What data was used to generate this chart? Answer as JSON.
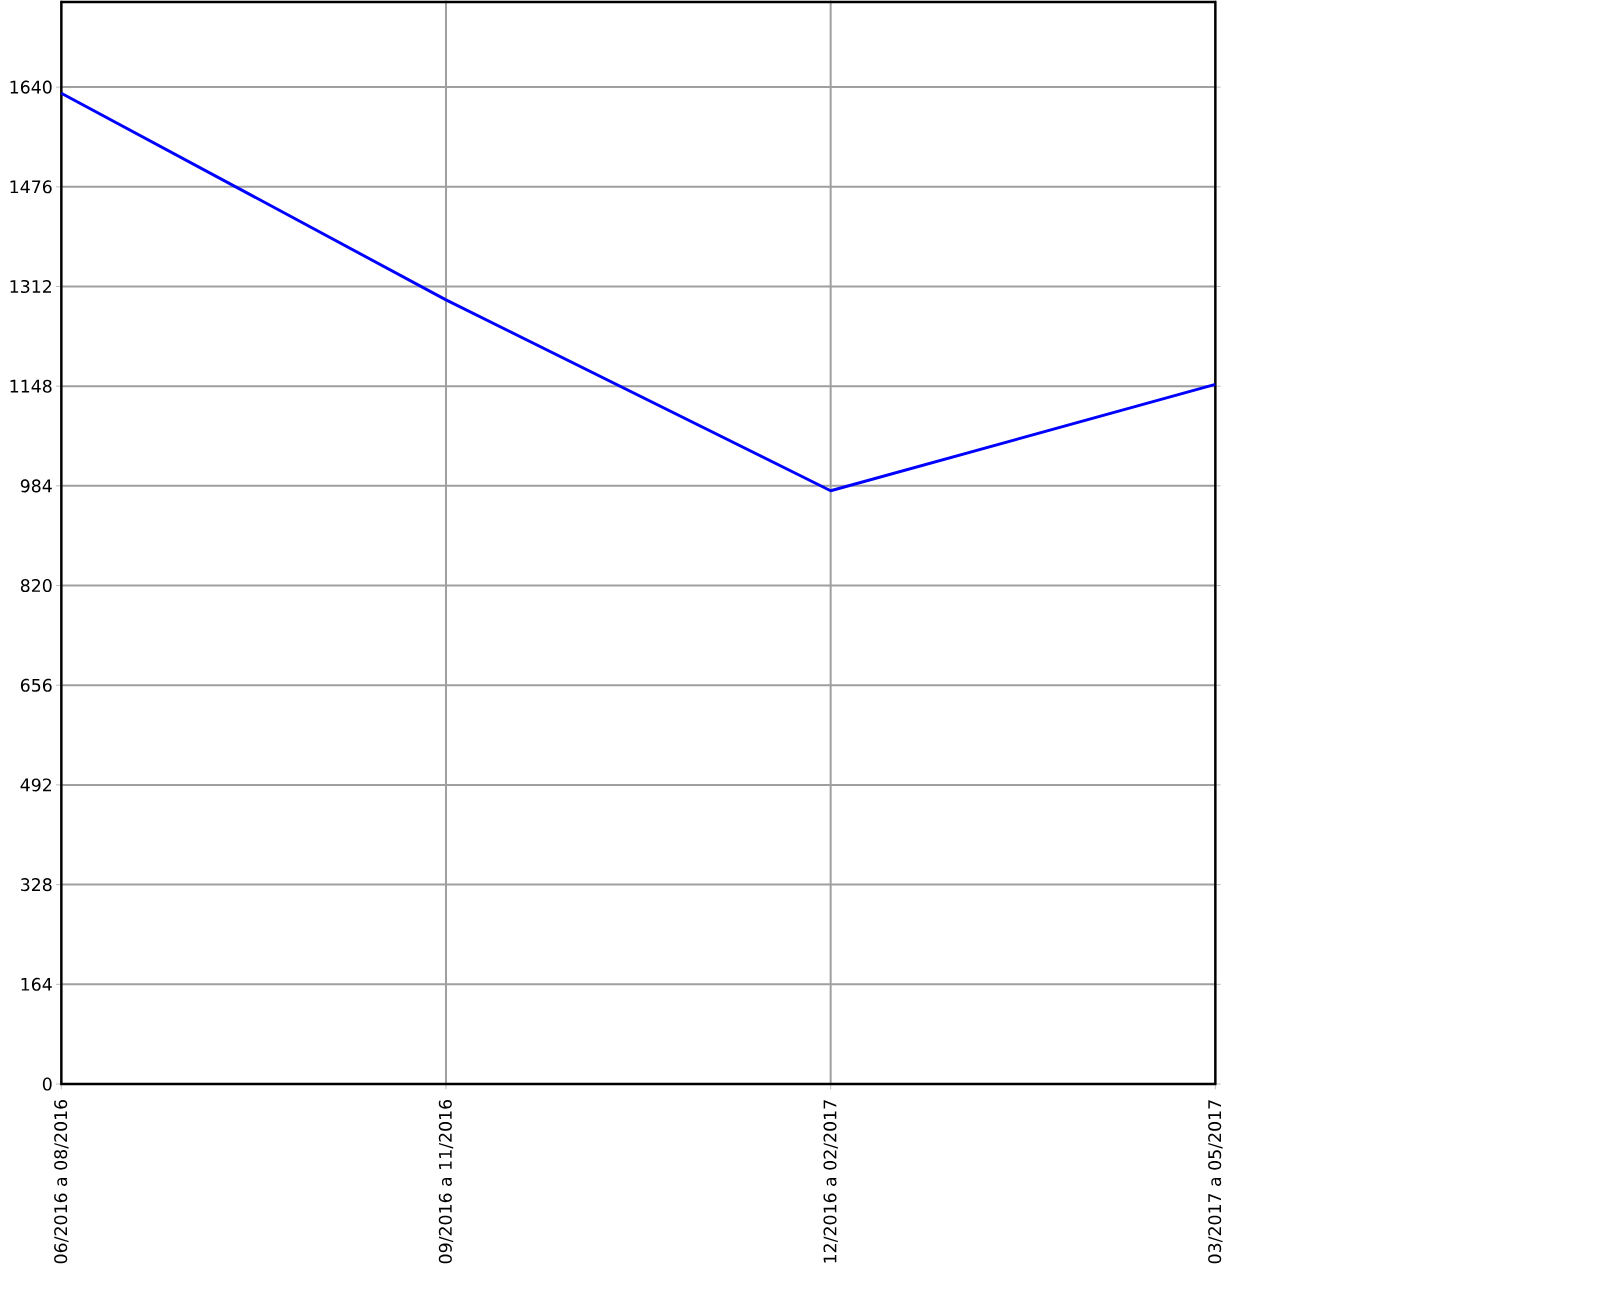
{
  "chart_data": {
    "type": "line",
    "categories": [
      "06/2016 a 08/2016",
      "09/2016 a 11/2016",
      "12/2016 a 02/2017",
      "03/2017 a 05/2017"
    ],
    "series": [
      {
        "color": "#0000ff",
        "values": [
          1630,
          1290,
          976,
          1151
        ]
      }
    ],
    "ylim": [
      0,
      1780
    ],
    "yticks": [
      0,
      164,
      328,
      492,
      656,
      820,
      984,
      1148,
      1312,
      1476,
      1640
    ],
    "grid": true
  }
}
